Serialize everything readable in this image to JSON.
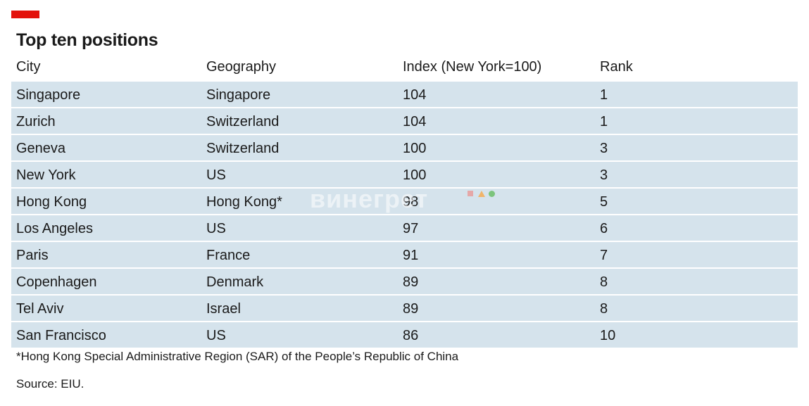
{
  "title": "Top ten positions",
  "chart_data": {
    "type": "table",
    "columns": [
      "City",
      "Geography",
      "Index (New York=100)",
      "Rank"
    ],
    "rows": [
      [
        "Singapore",
        "Singapore",
        "104",
        "1"
      ],
      [
        "Zurich",
        "Switzerland",
        "104",
        "1"
      ],
      [
        "Geneva",
        "Switzerland",
        "100",
        "3"
      ],
      [
        "New York",
        "US",
        "100",
        "3"
      ],
      [
        "Hong Kong",
        "Hong Kong*",
        "98",
        "5"
      ],
      [
        "Los Angeles",
        "US",
        "97",
        "6"
      ],
      [
        "Paris",
        "France",
        "91",
        "7"
      ],
      [
        "Copenhagen",
        "Denmark",
        "89",
        "8"
      ],
      [
        "Tel Aviv",
        "Israel",
        "89",
        "8"
      ],
      [
        "San Francisco",
        "US",
        "86",
        "10"
      ]
    ]
  },
  "footnote": "*Hong Kong Special Administrative Region (SAR) of the People’s Republic of China",
  "source": "Source: EIU.",
  "watermark": "винегрет",
  "colors": {
    "accent": "#e3120b",
    "row_fill": "#d5e3ec"
  }
}
